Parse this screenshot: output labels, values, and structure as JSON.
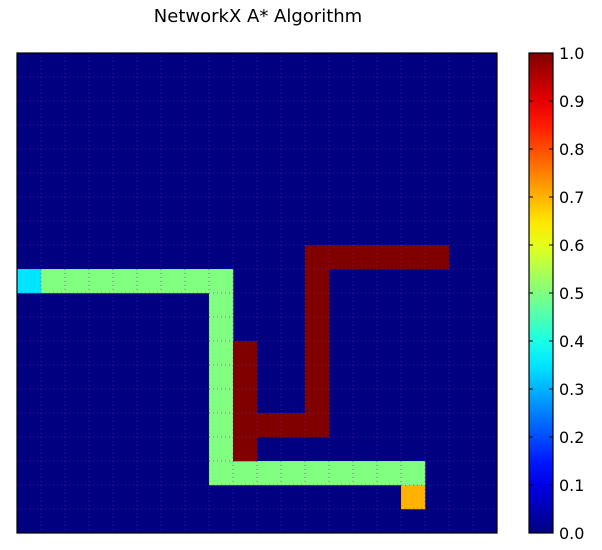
{
  "chart_data": {
    "type": "heatmap",
    "title": "NetworkX A* Algorithm",
    "rows": 20,
    "cols": 20,
    "grid": true,
    "grid_style": "dotted",
    "axis_ticks_shown": false,
    "colormap": "jet",
    "clim": [
      0.0,
      1.0
    ],
    "colorbar": {
      "ticks": [
        "0.0",
        "0.1",
        "0.2",
        "0.3",
        "0.4",
        "0.5",
        "0.6",
        "0.7",
        "0.8",
        "0.9",
        "1.0"
      ],
      "location": "right"
    },
    "background_value": 0.0,
    "cells": [
      {
        "row": 9,
        "col": 0,
        "value": 0.35
      },
      {
        "row": 9,
        "col": 1,
        "value": 0.5
      },
      {
        "row": 9,
        "col": 2,
        "value": 0.5
      },
      {
        "row": 9,
        "col": 3,
        "value": 0.5
      },
      {
        "row": 9,
        "col": 4,
        "value": 0.5
      },
      {
        "row": 9,
        "col": 5,
        "value": 0.5
      },
      {
        "row": 9,
        "col": 6,
        "value": 0.5
      },
      {
        "row": 9,
        "col": 7,
        "value": 0.5
      },
      {
        "row": 9,
        "col": 8,
        "value": 0.5
      },
      {
        "row": 10,
        "col": 8,
        "value": 0.5
      },
      {
        "row": 11,
        "col": 8,
        "value": 0.5
      },
      {
        "row": 12,
        "col": 8,
        "value": 0.5
      },
      {
        "row": 13,
        "col": 8,
        "value": 0.5
      },
      {
        "row": 14,
        "col": 8,
        "value": 0.5
      },
      {
        "row": 15,
        "col": 8,
        "value": 0.5
      },
      {
        "row": 16,
        "col": 8,
        "value": 0.5
      },
      {
        "row": 17,
        "col": 8,
        "value": 0.5
      },
      {
        "row": 17,
        "col": 9,
        "value": 0.5
      },
      {
        "row": 17,
        "col": 10,
        "value": 0.5
      },
      {
        "row": 17,
        "col": 11,
        "value": 0.5
      },
      {
        "row": 17,
        "col": 12,
        "value": 0.5
      },
      {
        "row": 17,
        "col": 13,
        "value": 0.5
      },
      {
        "row": 17,
        "col": 14,
        "value": 0.5
      },
      {
        "row": 17,
        "col": 15,
        "value": 0.5
      },
      {
        "row": 17,
        "col": 16,
        "value": 0.5
      },
      {
        "row": 18,
        "col": 16,
        "value": 0.7
      },
      {
        "row": 8,
        "col": 12,
        "value": 1.0
      },
      {
        "row": 8,
        "col": 13,
        "value": 1.0
      },
      {
        "row": 8,
        "col": 14,
        "value": 1.0
      },
      {
        "row": 8,
        "col": 15,
        "value": 1.0
      },
      {
        "row": 8,
        "col": 16,
        "value": 1.0
      },
      {
        "row": 8,
        "col": 17,
        "value": 1.0
      },
      {
        "row": 9,
        "col": 12,
        "value": 1.0
      },
      {
        "row": 10,
        "col": 12,
        "value": 1.0
      },
      {
        "row": 11,
        "col": 12,
        "value": 1.0
      },
      {
        "row": 12,
        "col": 12,
        "value": 1.0
      },
      {
        "row": 13,
        "col": 12,
        "value": 1.0
      },
      {
        "row": 14,
        "col": 12,
        "value": 1.0
      },
      {
        "row": 15,
        "col": 12,
        "value": 1.0
      },
      {
        "row": 15,
        "col": 11,
        "value": 1.0
      },
      {
        "row": 15,
        "col": 10,
        "value": 1.0
      },
      {
        "row": 15,
        "col": 9,
        "value": 1.0
      },
      {
        "row": 12,
        "col": 9,
        "value": 1.0
      },
      {
        "row": 13,
        "col": 9,
        "value": 1.0
      },
      {
        "row": 14,
        "col": 9,
        "value": 1.0
      },
      {
        "row": 16,
        "col": 9,
        "value": 1.0
      }
    ]
  }
}
